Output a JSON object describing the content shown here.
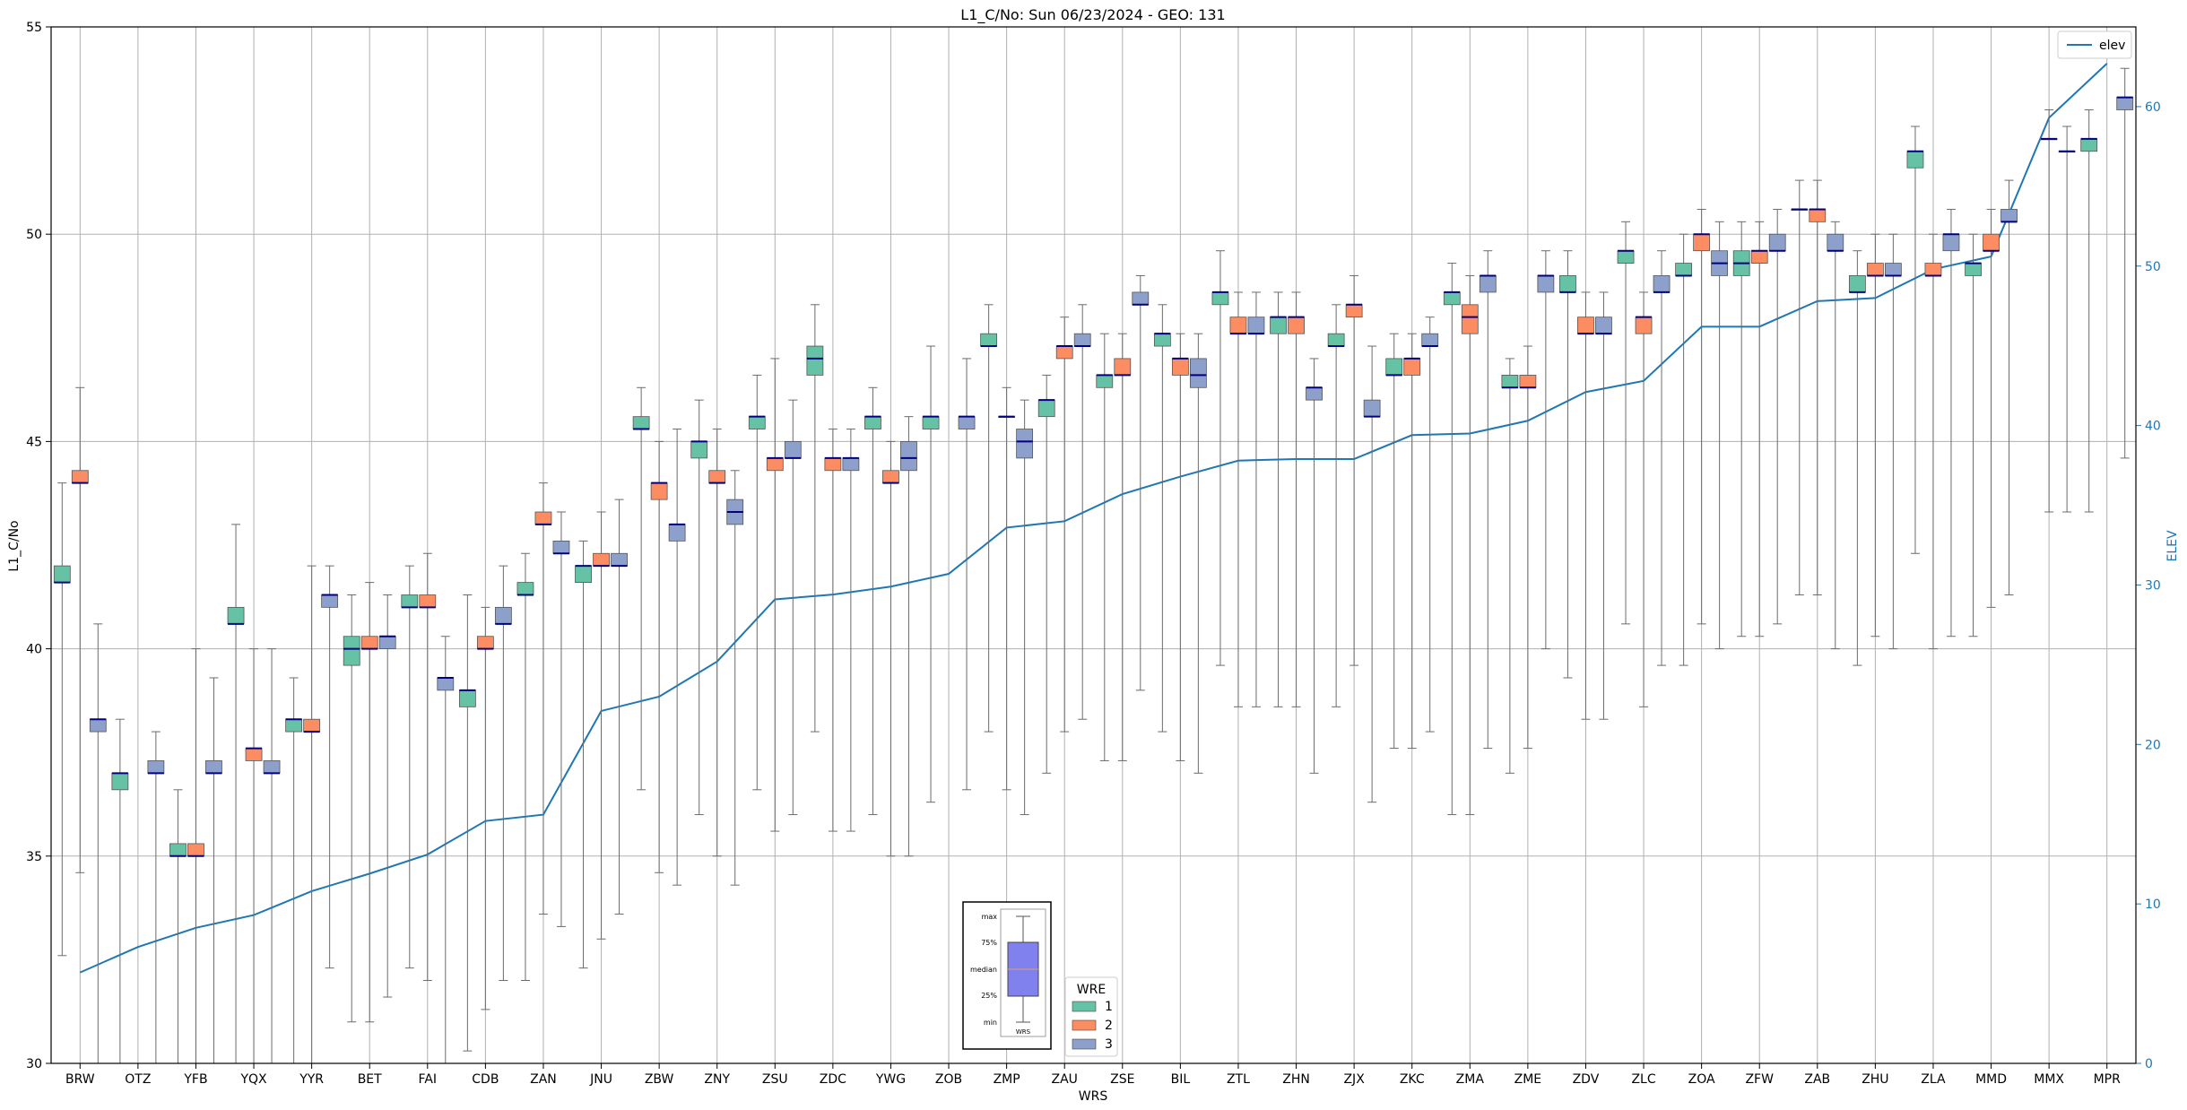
{
  "chart_data": {
    "type": "box",
    "title": "L1_C/No: Sun 06/23/2024 - GEO: 131",
    "xlabel": "WRS",
    "ylabel": "L1_C/No",
    "y2label": "ELEV",
    "ylim": [
      30,
      55
    ],
    "y2lim": [
      0,
      65
    ],
    "yticks": [
      30,
      35,
      40,
      45,
      50,
      55
    ],
    "y2ticks": [
      0,
      10,
      20,
      30,
      40,
      50,
      60
    ],
    "grid": true,
    "categories": [
      "BRW",
      "OTZ",
      "YFB",
      "YQX",
      "YYR",
      "BET",
      "FAI",
      "CDB",
      "ZAN",
      "JNU",
      "ZBW",
      "ZNY",
      "ZSU",
      "ZDC",
      "YWG",
      "ZOB",
      "ZMP",
      "ZAU",
      "ZSE",
      "BIL",
      "ZTL",
      "ZHN",
      "ZJX",
      "ZKC",
      "ZMA",
      "ZME",
      "ZDV",
      "ZLC",
      "ZOA",
      "ZFW",
      "ZAB",
      "ZHU",
      "ZLA",
      "MMD",
      "MMX",
      "MPR"
    ],
    "elev": [
      5.7,
      7.3,
      8.5,
      9.3,
      10.8,
      11.9,
      13.1,
      15.2,
      15.6,
      22.1,
      23.0,
      25.2,
      29.1,
      29.4,
      29.9,
      30.7,
      33.6,
      34.0,
      35.7,
      36.8,
      37.8,
      37.9,
      37.9,
      39.4,
      39.5,
      40.3,
      42.1,
      42.8,
      46.2,
      46.2,
      47.8,
      48.0,
      49.8,
      50.6,
      59.3,
      62.7
    ],
    "legend": {
      "title": "WRE",
      "entries": [
        {
          "label": "1",
          "color": "#66c2a5"
        },
        {
          "label": "2",
          "color": "#fc8d62"
        },
        {
          "label": "3",
          "color": "#8da0cb"
        }
      ]
    },
    "line_legend": {
      "label": "elev",
      "color": "#1f77b4"
    },
    "boxes": [
      {
        "station": "BRW",
        "wre": 1,
        "min": 32.6,
        "q1": 41.6,
        "median": 41.6,
        "q3": 42.0,
        "max": 44.0
      },
      {
        "station": "BRW",
        "wre": 2,
        "min": 34.6,
        "q1": 44.0,
        "median": 44.0,
        "q3": 44.3,
        "max": 46.3
      },
      {
        "station": "BRW",
        "wre": 3,
        "min": 30.0,
        "q1": 38.0,
        "median": 38.3,
        "q3": 38.3,
        "max": 40.6
      },
      {
        "station": "OTZ",
        "wre": 1,
        "min": 30.0,
        "q1": 36.6,
        "median": 37.0,
        "q3": 37.0,
        "max": 38.3
      },
      {
        "station": "OTZ",
        "wre": 3,
        "min": 30.0,
        "q1": 37.0,
        "median": 37.0,
        "q3": 37.3,
        "max": 38.0
      },
      {
        "station": "YFB",
        "wre": 1,
        "min": 30.0,
        "q1": 35.0,
        "median": 35.0,
        "q3": 35.3,
        "max": 36.6
      },
      {
        "station": "YFB",
        "wre": 2,
        "min": 30.0,
        "q1": 35.0,
        "median": 35.0,
        "q3": 35.3,
        "max": 40.0
      },
      {
        "station": "YFB",
        "wre": 3,
        "min": 30.0,
        "q1": 37.0,
        "median": 37.0,
        "q3": 37.3,
        "max": 39.3
      },
      {
        "station": "YQX",
        "wre": 1,
        "min": 30.0,
        "q1": 40.6,
        "median": 40.6,
        "q3": 41.0,
        "max": 43.0
      },
      {
        "station": "YQX",
        "wre": 2,
        "min": 30.0,
        "q1": 37.3,
        "median": 37.6,
        "q3": 37.6,
        "max": 40.0
      },
      {
        "station": "YQX",
        "wre": 3,
        "min": 30.0,
        "q1": 37.0,
        "median": 37.0,
        "q3": 37.3,
        "max": 40.0
      },
      {
        "station": "YYR",
        "wre": 1,
        "min": 30.0,
        "q1": 38.0,
        "median": 38.3,
        "q3": 38.3,
        "max": 39.3
      },
      {
        "station": "YYR",
        "wre": 2,
        "min": 30.0,
        "q1": 38.0,
        "median": 38.0,
        "q3": 38.3,
        "max": 42.0
      },
      {
        "station": "YYR",
        "wre": 3,
        "min": 32.3,
        "q1": 41.0,
        "median": 41.3,
        "q3": 41.3,
        "max": 42.0
      },
      {
        "station": "BET",
        "wre": 1,
        "min": 31.0,
        "q1": 39.6,
        "median": 40.0,
        "q3": 40.3,
        "max": 41.3
      },
      {
        "station": "BET",
        "wre": 2,
        "min": 31.0,
        "q1": 40.0,
        "median": 40.0,
        "q3": 40.3,
        "max": 41.6
      },
      {
        "station": "BET",
        "wre": 3,
        "min": 31.6,
        "q1": 40.0,
        "median": 40.3,
        "q3": 40.3,
        "max": 41.3
      },
      {
        "station": "FAI",
        "wre": 1,
        "min": 32.3,
        "q1": 41.0,
        "median": 41.0,
        "q3": 41.3,
        "max": 42.0
      },
      {
        "station": "FAI",
        "wre": 2,
        "min": 32.0,
        "q1": 41.0,
        "median": 41.0,
        "q3": 41.3,
        "max": 42.3
      },
      {
        "station": "FAI",
        "wre": 3,
        "min": 30.0,
        "q1": 39.0,
        "median": 39.3,
        "q3": 39.3,
        "max": 40.3
      },
      {
        "station": "CDB",
        "wre": 1,
        "min": 30.3,
        "q1": 38.6,
        "median": 39.0,
        "q3": 39.0,
        "max": 41.3
      },
      {
        "station": "CDB",
        "wre": 2,
        "min": 31.3,
        "q1": 40.0,
        "median": 40.0,
        "q3": 40.3,
        "max": 41.0
      },
      {
        "station": "CDB",
        "wre": 3,
        "min": 32.0,
        "q1": 40.6,
        "median": 40.6,
        "q3": 41.0,
        "max": 42.0
      },
      {
        "station": "ZAN",
        "wre": 1,
        "min": 32.0,
        "q1": 41.3,
        "median": 41.3,
        "q3": 41.6,
        "max": 42.3
      },
      {
        "station": "ZAN",
        "wre": 2,
        "min": 33.6,
        "q1": 43.0,
        "median": 43.0,
        "q3": 43.3,
        "max": 44.0
      },
      {
        "station": "ZAN",
        "wre": 3,
        "min": 33.3,
        "q1": 42.3,
        "median": 42.3,
        "q3": 42.6,
        "max": 43.3
      },
      {
        "station": "JNU",
        "wre": 1,
        "min": 32.3,
        "q1": 41.6,
        "median": 42.0,
        "q3": 42.0,
        "max": 42.6
      },
      {
        "station": "JNU",
        "wre": 2,
        "min": 33.0,
        "q1": 42.0,
        "median": 42.0,
        "q3": 42.3,
        "max": 43.3
      },
      {
        "station": "JNU",
        "wre": 3,
        "min": 33.6,
        "q1": 42.0,
        "median": 42.0,
        "q3": 42.3,
        "max": 43.6
      },
      {
        "station": "ZBW",
        "wre": 1,
        "min": 36.6,
        "q1": 45.3,
        "median": 45.3,
        "q3": 45.6,
        "max": 46.3
      },
      {
        "station": "ZBW",
        "wre": 2,
        "min": 34.6,
        "q1": 43.6,
        "median": 44.0,
        "q3": 44.0,
        "max": 45.0
      },
      {
        "station": "ZBW",
        "wre": 3,
        "min": 34.3,
        "q1": 42.6,
        "median": 43.0,
        "q3": 43.0,
        "max": 45.3
      },
      {
        "station": "ZNY",
        "wre": 1,
        "min": 36.0,
        "q1": 44.6,
        "median": 45.0,
        "q3": 45.0,
        "max": 46.0
      },
      {
        "station": "ZNY",
        "wre": 2,
        "min": 35.0,
        "q1": 44.0,
        "median": 44.0,
        "q3": 44.3,
        "max": 45.3
      },
      {
        "station": "ZNY",
        "wre": 3,
        "min": 34.3,
        "q1": 43.0,
        "median": 43.3,
        "q3": 43.6,
        "max": 44.3
      },
      {
        "station": "ZSU",
        "wre": 1,
        "min": 36.6,
        "q1": 45.3,
        "median": 45.6,
        "q3": 45.6,
        "max": 46.6
      },
      {
        "station": "ZSU",
        "wre": 2,
        "min": 35.6,
        "q1": 44.3,
        "median": 44.6,
        "q3": 44.6,
        "max": 47.0
      },
      {
        "station": "ZSU",
        "wre": 3,
        "min": 36.0,
        "q1": 44.6,
        "median": 44.6,
        "q3": 45.0,
        "max": 46.0
      },
      {
        "station": "ZDC",
        "wre": 1,
        "min": 38.0,
        "q1": 46.6,
        "median": 47.0,
        "q3": 47.3,
        "max": 48.3
      },
      {
        "station": "ZDC",
        "wre": 2,
        "min": 35.6,
        "q1": 44.3,
        "median": 44.6,
        "q3": 44.6,
        "max": 45.3
      },
      {
        "station": "ZDC",
        "wre": 3,
        "min": 35.6,
        "q1": 44.3,
        "median": 44.6,
        "q3": 44.6,
        "max": 45.3
      },
      {
        "station": "YWG",
        "wre": 1,
        "min": 36.0,
        "q1": 45.3,
        "median": 45.6,
        "q3": 45.6,
        "max": 46.3
      },
      {
        "station": "YWG",
        "wre": 2,
        "min": 35.0,
        "q1": 44.0,
        "median": 44.0,
        "q3": 44.3,
        "max": 45.0
      },
      {
        "station": "YWG",
        "wre": 3,
        "min": 35.0,
        "q1": 44.3,
        "median": 44.6,
        "q3": 45.0,
        "max": 45.6
      },
      {
        "station": "ZOB",
        "wre": 1,
        "min": 36.3,
        "q1": 45.3,
        "median": 45.6,
        "q3": 45.6,
        "max": 47.3
      },
      {
        "station": "ZOB",
        "wre": 3,
        "min": 36.6,
        "q1": 45.3,
        "median": 45.6,
        "q3": 45.6,
        "max": 47.0
      },
      {
        "station": "ZMP",
        "wre": 1,
        "min": 38.0,
        "q1": 47.3,
        "median": 47.3,
        "q3": 47.6,
        "max": 48.3
      },
      {
        "station": "ZMP",
        "wre": 2,
        "min": 36.6,
        "q1": 45.6,
        "median": 45.6,
        "q3": 45.6,
        "max": 46.3
      },
      {
        "station": "ZMP",
        "wre": 3,
        "min": 36.0,
        "q1": 44.6,
        "median": 45.0,
        "q3": 45.3,
        "max": 46.0
      },
      {
        "station": "ZAU",
        "wre": 1,
        "min": 37.0,
        "q1": 45.6,
        "median": 46.0,
        "q3": 46.0,
        "max": 46.6
      },
      {
        "station": "ZAU",
        "wre": 2,
        "min": 38.0,
        "q1": 47.0,
        "median": 47.3,
        "q3": 47.3,
        "max": 48.0
      },
      {
        "station": "ZAU",
        "wre": 3,
        "min": 38.3,
        "q1": 47.3,
        "median": 47.3,
        "q3": 47.6,
        "max": 48.3
      },
      {
        "station": "ZSE",
        "wre": 1,
        "min": 37.3,
        "q1": 46.3,
        "median": 46.6,
        "q3": 46.6,
        "max": 47.6
      },
      {
        "station": "ZSE",
        "wre": 2,
        "min": 37.3,
        "q1": 46.6,
        "median": 46.6,
        "q3": 47.0,
        "max": 47.6
      },
      {
        "station": "ZSE",
        "wre": 3,
        "min": 39.0,
        "q1": 48.3,
        "median": 48.3,
        "q3": 48.6,
        "max": 49.0
      },
      {
        "station": "BIL",
        "wre": 1,
        "min": 38.0,
        "q1": 47.3,
        "median": 47.6,
        "q3": 47.6,
        "max": 48.3
      },
      {
        "station": "BIL",
        "wre": 2,
        "min": 37.3,
        "q1": 46.6,
        "median": 47.0,
        "q3": 47.0,
        "max": 47.6
      },
      {
        "station": "BIL",
        "wre": 3,
        "min": 37.0,
        "q1": 46.3,
        "median": 46.6,
        "q3": 47.0,
        "max": 47.6
      },
      {
        "station": "ZTL",
        "wre": 1,
        "min": 39.6,
        "q1": 48.3,
        "median": 48.6,
        "q3": 48.6,
        "max": 49.6
      },
      {
        "station": "ZTL",
        "wre": 2,
        "min": 38.6,
        "q1": 47.6,
        "median": 47.6,
        "q3": 48.0,
        "max": 48.6
      },
      {
        "station": "ZTL",
        "wre": 3,
        "min": 38.6,
        "q1": 47.6,
        "median": 47.6,
        "q3": 48.0,
        "max": 48.6
      },
      {
        "station": "ZHN",
        "wre": 1,
        "min": 38.6,
        "q1": 47.6,
        "median": 48.0,
        "q3": 48.0,
        "max": 48.6
      },
      {
        "station": "ZHN",
        "wre": 2,
        "min": 38.6,
        "q1": 47.6,
        "median": 48.0,
        "q3": 48.0,
        "max": 48.6
      },
      {
        "station": "ZHN",
        "wre": 3,
        "min": 37.0,
        "q1": 46.0,
        "median": 46.3,
        "q3": 46.3,
        "max": 47.0
      },
      {
        "station": "ZJX",
        "wre": 1,
        "min": 38.6,
        "q1": 47.3,
        "median": 47.3,
        "q3": 47.6,
        "max": 48.3
      },
      {
        "station": "ZJX",
        "wre": 2,
        "min": 39.6,
        "q1": 48.0,
        "median": 48.3,
        "q3": 48.3,
        "max": 49.0
      },
      {
        "station": "ZJX",
        "wre": 3,
        "min": 36.3,
        "q1": 45.6,
        "median": 45.6,
        "q3": 46.0,
        "max": 47.3
      },
      {
        "station": "ZKC",
        "wre": 1,
        "min": 37.6,
        "q1": 46.6,
        "median": 46.6,
        "q3": 47.0,
        "max": 47.6
      },
      {
        "station": "ZKC",
        "wre": 2,
        "min": 37.6,
        "q1": 46.6,
        "median": 47.0,
        "q3": 47.0,
        "max": 47.6
      },
      {
        "station": "ZKC",
        "wre": 3,
        "min": 38.0,
        "q1": 47.3,
        "median": 47.3,
        "q3": 47.6,
        "max": 48.0
      },
      {
        "station": "ZMA",
        "wre": 1,
        "min": 36.0,
        "q1": 48.3,
        "median": 48.6,
        "q3": 48.6,
        "max": 49.3
      },
      {
        "station": "ZMA",
        "wre": 2,
        "min": 36.0,
        "q1": 47.6,
        "median": 48.0,
        "q3": 48.3,
        "max": 49.0
      },
      {
        "station": "ZMA",
        "wre": 3,
        "min": 37.6,
        "q1": 48.6,
        "median": 49.0,
        "q3": 49.0,
        "max": 49.6
      },
      {
        "station": "ZME",
        "wre": 1,
        "min": 37.0,
        "q1": 46.3,
        "median": 46.3,
        "q3": 46.6,
        "max": 47.0
      },
      {
        "station": "ZME",
        "wre": 2,
        "min": 37.6,
        "q1": 46.3,
        "median": 46.3,
        "q3": 46.6,
        "max": 47.3
      },
      {
        "station": "ZME",
        "wre": 3,
        "min": 40.0,
        "q1": 48.6,
        "median": 49.0,
        "q3": 49.0,
        "max": 49.6
      },
      {
        "station": "ZDV",
        "wre": 1,
        "min": 39.3,
        "q1": 48.6,
        "median": 48.6,
        "q3": 49.0,
        "max": 49.6
      },
      {
        "station": "ZDV",
        "wre": 2,
        "min": 38.3,
        "q1": 47.6,
        "median": 47.6,
        "q3": 48.0,
        "max": 48.6
      },
      {
        "station": "ZDV",
        "wre": 3,
        "min": 38.3,
        "q1": 47.6,
        "median": 47.6,
        "q3": 48.0,
        "max": 48.6
      },
      {
        "station": "ZLC",
        "wre": 1,
        "min": 40.6,
        "q1": 49.3,
        "median": 49.6,
        "q3": 49.6,
        "max": 50.3
      },
      {
        "station": "ZLC",
        "wre": 2,
        "min": 38.6,
        "q1": 47.6,
        "median": 48.0,
        "q3": 48.0,
        "max": 48.6
      },
      {
        "station": "ZLC",
        "wre": 3,
        "min": 39.6,
        "q1": 48.6,
        "median": 48.6,
        "q3": 49.0,
        "max": 49.6
      },
      {
        "station": "ZOA",
        "wre": 1,
        "min": 39.6,
        "q1": 49.0,
        "median": 49.0,
        "q3": 49.3,
        "max": 50.0
      },
      {
        "station": "ZOA",
        "wre": 2,
        "min": 40.6,
        "q1": 49.6,
        "median": 50.0,
        "q3": 50.0,
        "max": 50.6
      },
      {
        "station": "ZOA",
        "wre": 3,
        "min": 40.0,
        "q1": 49.0,
        "median": 49.3,
        "q3": 49.6,
        "max": 50.3
      },
      {
        "station": "ZFW",
        "wre": 1,
        "min": 40.3,
        "q1": 49.0,
        "median": 49.3,
        "q3": 49.6,
        "max": 50.3
      },
      {
        "station": "ZFW",
        "wre": 2,
        "min": 40.3,
        "q1": 49.3,
        "median": 49.6,
        "q3": 49.6,
        "max": 50.3
      },
      {
        "station": "ZFW",
        "wre": 3,
        "min": 40.6,
        "q1": 49.6,
        "median": 49.6,
        "q3": 50.0,
        "max": 50.6
      },
      {
        "station": "ZAB",
        "wre": 1,
        "min": 41.3,
        "q1": 50.6,
        "median": 50.6,
        "q3": 50.6,
        "max": 51.3
      },
      {
        "station": "ZAB",
        "wre": 2,
        "min": 41.3,
        "q1": 50.3,
        "median": 50.6,
        "q3": 50.6,
        "max": 51.3
      },
      {
        "station": "ZAB",
        "wre": 3,
        "min": 40.0,
        "q1": 49.6,
        "median": 49.6,
        "q3": 50.0,
        "max": 50.3
      },
      {
        "station": "ZHU",
        "wre": 1,
        "min": 39.6,
        "q1": 48.6,
        "median": 48.6,
        "q3": 49.0,
        "max": 49.6
      },
      {
        "station": "ZHU",
        "wre": 2,
        "min": 40.3,
        "q1": 49.0,
        "median": 49.0,
        "q3": 49.3,
        "max": 50.0
      },
      {
        "station": "ZHU",
        "wre": 3,
        "min": 40.0,
        "q1": 49.0,
        "median": 49.0,
        "q3": 49.3,
        "max": 50.0
      },
      {
        "station": "ZLA",
        "wre": 1,
        "min": 42.3,
        "q1": 51.6,
        "median": 52.0,
        "q3": 52.0,
        "max": 52.6
      },
      {
        "station": "ZLA",
        "wre": 2,
        "min": 40.0,
        "q1": 49.0,
        "median": 49.0,
        "q3": 49.3,
        "max": 50.0
      },
      {
        "station": "ZLA",
        "wre": 3,
        "min": 40.3,
        "q1": 49.6,
        "median": 50.0,
        "q3": 50.0,
        "max": 50.6
      },
      {
        "station": "MMD",
        "wre": 1,
        "min": 40.3,
        "q1": 49.0,
        "median": 49.3,
        "q3": 49.3,
        "max": 50.0
      },
      {
        "station": "MMD",
        "wre": 2,
        "min": 41.0,
        "q1": 49.6,
        "median": 49.6,
        "q3": 50.0,
        "max": 50.6
      },
      {
        "station": "MMD",
        "wre": 3,
        "min": 41.3,
        "q1": 50.3,
        "median": 50.3,
        "q3": 50.6,
        "max": 51.3
      },
      {
        "station": "MMX",
        "wre": 2,
        "min": 43.3,
        "q1": 52.3,
        "median": 52.3,
        "q3": 52.3,
        "max": 53.0
      },
      {
        "station": "MMX",
        "wre": 3,
        "min": 43.3,
        "q1": 52.0,
        "median": 52.0,
        "q3": 52.0,
        "max": 52.6
      },
      {
        "station": "MPR",
        "wre": 1,
        "min": 43.3,
        "q1": 52.0,
        "median": 52.3,
        "q3": 52.3,
        "max": 53.0
      },
      {
        "station": "MPR",
        "wre": 3,
        "min": 44.6,
        "q1": 53.0,
        "median": 53.3,
        "q3": 53.3,
        "max": 54.0
      }
    ]
  },
  "inset": {
    "labels": [
      "max",
      "75%",
      "median",
      "25%",
      "min"
    ],
    "xlabel": "WRS"
  }
}
